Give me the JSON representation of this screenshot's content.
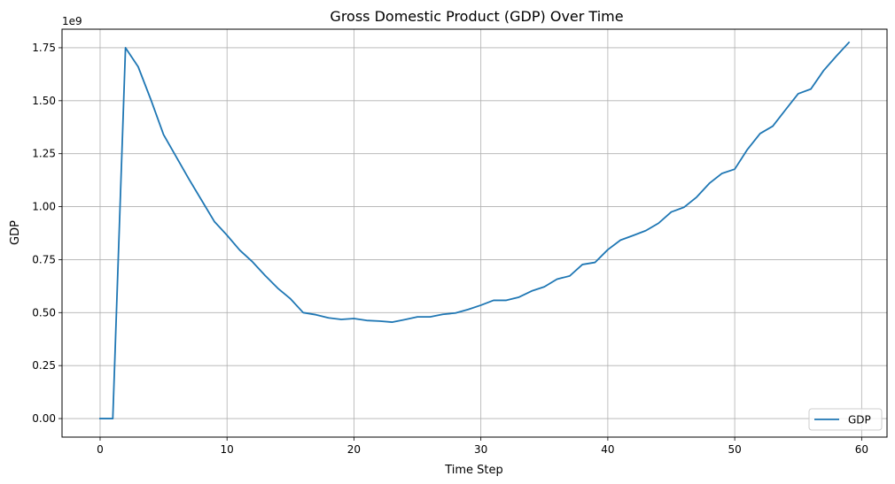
{
  "chart_data": {
    "type": "line",
    "title": "Gross Domestic Product (GDP) Over Time",
    "xlabel": "Time Step",
    "ylabel": "GDP",
    "y_offset_label": "1e9",
    "xlim": [
      -3,
      62
    ],
    "ylim": [
      -0.0875,
      1.8375
    ],
    "xticks": [
      0,
      10,
      20,
      30,
      40,
      50,
      60
    ],
    "yticks": [
      0.0,
      0.25,
      0.5,
      0.75,
      1.0,
      1.25,
      1.5,
      1.75
    ],
    "xtick_labels": [
      "0",
      "10",
      "20",
      "30",
      "40",
      "50",
      "60"
    ],
    "ytick_labels": [
      "0.00",
      "0.25",
      "0.50",
      "0.75",
      "1.00",
      "1.25",
      "1.50",
      "1.75"
    ],
    "grid": true,
    "legend_position": "lower-right",
    "line_color": "#1f77b4",
    "series": [
      {
        "name": "GDP",
        "x": [
          0,
          1,
          2,
          3,
          4,
          5,
          6,
          7,
          8,
          9,
          10,
          11,
          12,
          13,
          14,
          15,
          16,
          17,
          18,
          19,
          20,
          21,
          22,
          23,
          24,
          25,
          26,
          27,
          28,
          29,
          30,
          31,
          32,
          33,
          34,
          35,
          36,
          37,
          38,
          39,
          40,
          41,
          42,
          43,
          44,
          45,
          46,
          47,
          48,
          49,
          50,
          51,
          52,
          53,
          54,
          55,
          56,
          57,
          58,
          59
        ],
        "values": [
          0.0,
          0.0,
          1.75,
          1.66,
          1.505,
          1.34,
          1.235,
          1.13,
          1.03,
          0.93,
          0.865,
          0.795,
          0.74,
          0.675,
          0.615,
          0.565,
          0.5,
          0.49,
          0.475,
          0.468,
          0.472,
          0.463,
          0.46,
          0.455,
          0.467,
          0.48,
          0.48,
          0.492,
          0.498,
          0.515,
          0.535,
          0.558,
          0.558,
          0.573,
          0.602,
          0.622,
          0.658,
          0.673,
          0.727,
          0.737,
          0.797,
          0.842,
          0.864,
          0.887,
          0.922,
          0.975,
          0.997,
          1.045,
          1.11,
          1.157,
          1.177,
          1.27,
          1.345,
          1.38,
          1.457,
          1.533,
          1.555,
          1.642,
          1.71,
          1.775
        ]
      }
    ]
  }
}
